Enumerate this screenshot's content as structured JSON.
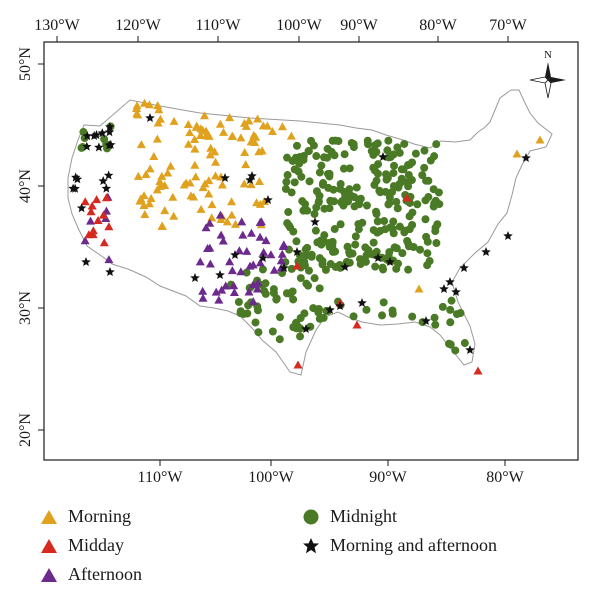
{
  "map": {
    "top_axis_labels": [
      "130°W",
      "120°W",
      "110°W",
      "100°W",
      "90°W",
      "80°W",
      "70°W"
    ],
    "left_axis_labels": [
      "50°N",
      "40°N",
      "30°N",
      "20°N"
    ],
    "bottom_axis_labels": [
      "110°W",
      "100°W",
      "90°W",
      "80°W"
    ],
    "north_arrow_label": "N",
    "outline_color": "#9a9a9a",
    "region": "contiguous United States"
  },
  "legend": {
    "morning": "Morning",
    "midday": "Midday",
    "afternoon": "Afternoon",
    "midnight": "Midnight",
    "morning_afternoon": "Morning and afternoon"
  },
  "categories": {
    "morning": {
      "color": "#e0a21e",
      "marker": "triangle",
      "icon": "triangle-icon"
    },
    "midday": {
      "color": "#d42a1f",
      "marker": "triangle",
      "icon": "triangle-icon"
    },
    "afternoon": {
      "color": "#6b2a8c",
      "marker": "triangle",
      "icon": "triangle-icon"
    },
    "midnight": {
      "color": "#4a7a25",
      "marker": "circle",
      "icon": "circle-icon"
    },
    "morning_afternoon": {
      "color": "#111111",
      "marker": "star",
      "icon": "star-icon"
    }
  }
}
